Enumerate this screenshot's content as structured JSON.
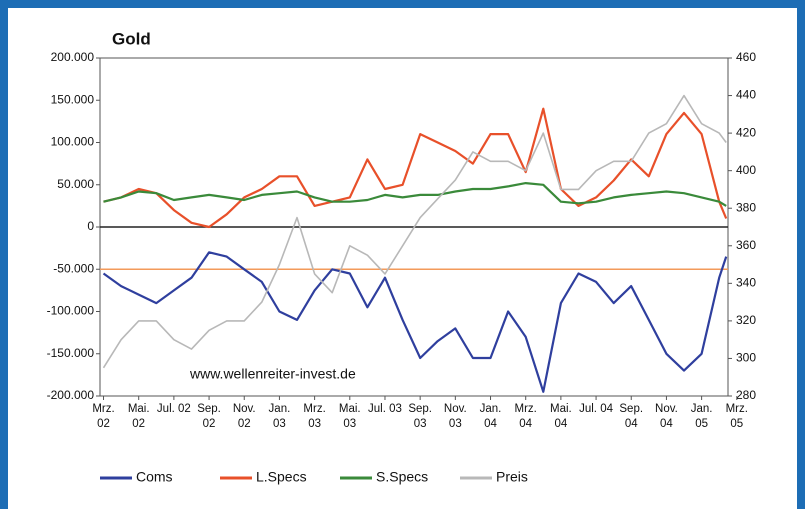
{
  "chart_data": {
    "type": "line",
    "title": "Gold",
    "annotation": "www.wellenreiter-invest.de",
    "x": [
      0,
      1,
      2,
      3,
      4,
      5,
      6,
      7,
      8,
      9,
      10,
      11,
      12,
      13,
      14,
      15,
      16,
      17,
      18,
      19,
      20,
      21,
      22,
      23,
      24,
      25,
      26,
      27,
      28,
      29,
      30,
      31,
      32,
      33,
      34,
      35,
      35.4
    ],
    "xlim": [
      -0.2,
      35.5
    ],
    "xticks": [
      {
        "value": 0,
        "label": "Mrz. 02"
      },
      {
        "value": 2,
        "label": "Mai. 02"
      },
      {
        "value": 4,
        "label": "Jul. 02"
      },
      {
        "value": 6,
        "label": "Sep. 02"
      },
      {
        "value": 8,
        "label": "Nov. 02"
      },
      {
        "value": 10,
        "label": "Jan. 03"
      },
      {
        "value": 12,
        "label": "Mrz. 03"
      },
      {
        "value": 14,
        "label": "Mai. 03"
      },
      {
        "value": 16,
        "label": "Jul. 03"
      },
      {
        "value": 18,
        "label": "Sep. 03"
      },
      {
        "value": 20,
        "label": "Nov. 03"
      },
      {
        "value": 22,
        "label": "Jan. 04"
      },
      {
        "value": 24,
        "label": "Mrz. 04"
      },
      {
        "value": 26,
        "label": "Mai. 04"
      },
      {
        "value": 28,
        "label": "Jul. 04"
      },
      {
        "value": 30,
        "label": "Sep. 04"
      },
      {
        "value": 32,
        "label": "Nov. 04"
      },
      {
        "value": 34,
        "label": "Jan. 05"
      },
      {
        "value": 36,
        "label": "Mrz. 05"
      }
    ],
    "ylim": [
      -200000,
      200000
    ],
    "yticks": [
      {
        "value": 200000,
        "label": "200.000"
      },
      {
        "value": 150000,
        "label": "150.000"
      },
      {
        "value": 100000,
        "label": "100.000"
      },
      {
        "value": 50000,
        "label": "50.000"
      },
      0,
      {
        "value": -50000,
        "label": "-50.000"
      },
      {
        "value": -100000,
        "label": "-100.000"
      },
      {
        "value": -150000,
        "label": "-150.000"
      },
      {
        "value": -200000,
        "label": "-200.000"
      }
    ],
    "y2lim": [
      280,
      460
    ],
    "y2ticks": [
      460,
      440,
      420,
      400,
      380,
      360,
      340,
      320,
      300,
      280
    ],
    "reference_line": {
      "value": -50000,
      "color": "#f39a5a"
    },
    "series": [
      {
        "name": "Coms",
        "color": "#2f3f9e",
        "values": [
          -55000,
          -70000,
          -80000,
          -90000,
          -75000,
          -60000,
          -30000,
          -35000,
          -50000,
          -65000,
          -100000,
          -110000,
          -75000,
          -50000,
          -55000,
          -95000,
          -60000,
          -110000,
          -155000,
          -135000,
          -120000,
          -155000,
          -155000,
          -100000,
          -130000,
          -195000,
          -90000,
          -55000,
          -65000,
          -90000,
          -70000,
          -110000,
          -150000,
          -170000,
          -150000,
          -60000,
          -35000
        ]
      },
      {
        "name": "L.Specs",
        "color": "#e8502a",
        "values": [
          30000,
          35000,
          45000,
          40000,
          20000,
          5000,
          0,
          15000,
          35000,
          45000,
          60000,
          60000,
          25000,
          30000,
          35000,
          80000,
          45000,
          50000,
          110000,
          100000,
          90000,
          75000,
          110000,
          110000,
          65000,
          140000,
          45000,
          25000,
          35000,
          55000,
          80000,
          60000,
          110000,
          135000,
          110000,
          30000,
          10000
        ]
      },
      {
        "name": "S.Specs",
        "color": "#3a8a3a",
        "values": [
          30000,
          35000,
          42000,
          40000,
          32000,
          35000,
          38000,
          35000,
          32000,
          38000,
          40000,
          42000,
          35000,
          30000,
          30000,
          32000,
          38000,
          35000,
          38000,
          38000,
          42000,
          45000,
          45000,
          48000,
          52000,
          50000,
          30000,
          28000,
          30000,
          35000,
          38000,
          40000,
          42000,
          40000,
          35000,
          30000,
          25000
        ]
      },
      {
        "name": "Preis",
        "color": "#b8b8b8",
        "axis": "y2",
        "values": [
          295,
          310,
          320,
          320,
          310,
          305,
          315,
          320,
          320,
          330,
          350,
          375,
          345,
          335,
          360,
          355,
          345,
          360,
          375,
          385,
          395,
          410,
          405,
          405,
          400,
          420,
          390,
          390,
          400,
          405,
          405,
          420,
          425,
          440,
          425,
          420,
          415
        ]
      }
    ]
  }
}
